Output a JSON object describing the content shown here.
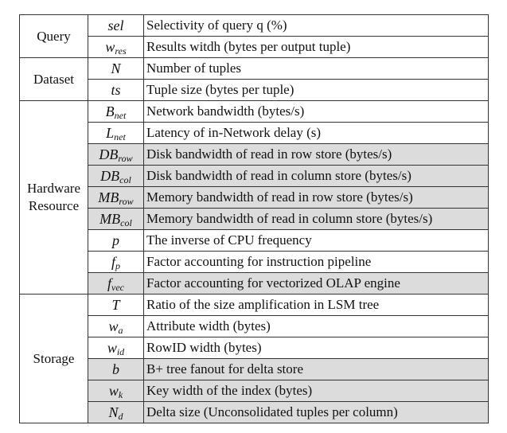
{
  "groups": {
    "query": "Query",
    "dataset": "Dataset",
    "hardware_1": "Hardware",
    "hardware_2": "Resource",
    "storage": "Storage"
  },
  "rows": [
    {
      "sym": "sel",
      "sub": "",
      "desc": "Selectivity of query q (%)",
      "shaded": false
    },
    {
      "sym": "w",
      "sub": "res",
      "desc": "Results witdh (bytes per output tuple)",
      "shaded": false
    },
    {
      "sym": "N",
      "sub": "",
      "desc": "Number of tuples",
      "shaded": false
    },
    {
      "sym": "ts",
      "sub": "",
      "desc": "Tuple size (bytes per tuple)",
      "shaded": false
    },
    {
      "sym": "B",
      "sub": "net",
      "desc": "Network bandwidth (bytes/s)",
      "shaded": false
    },
    {
      "sym": "L",
      "sub": "net",
      "desc": "Latency of in-Network delay (s)",
      "shaded": false
    },
    {
      "sym": "DB",
      "sub": "row",
      "desc": "Disk bandwidth of read in row store (bytes/s)",
      "shaded": true
    },
    {
      "sym": "DB",
      "sub": "col",
      "desc": "Disk bandwidth of read in column store (bytes/s)",
      "shaded": true
    },
    {
      "sym": "MB",
      "sub": "row",
      "desc": "Memory bandwidth of read in row store (bytes/s)",
      "shaded": true
    },
    {
      "sym": "MB",
      "sub": "col",
      "desc": "Memory bandwidth of read in column store (bytes/s)",
      "shaded": true
    },
    {
      "sym": "p",
      "sub": "",
      "desc": "The inverse of CPU frequency",
      "shaded": false
    },
    {
      "sym": "f",
      "sub": "p",
      "desc": "Factor accounting for instruction pipeline",
      "shaded": false
    },
    {
      "sym": "f",
      "sub": "vec",
      "desc": "Factor accounting for vectorized OLAP engine",
      "shaded": true
    },
    {
      "sym": "T",
      "sub": "",
      "desc": "Ratio of the size amplification in LSM tree",
      "shaded": false
    },
    {
      "sym": "w",
      "sub": "a",
      "desc": "Attribute width (bytes)",
      "shaded": false
    },
    {
      "sym": "w",
      "sub": "id",
      "desc": "RowID width (bytes)",
      "shaded": false
    },
    {
      "sym": "b",
      "sub": "",
      "desc": "B+ tree fanout for delta store",
      "shaded": true
    },
    {
      "sym": "w",
      "sub": "k",
      "desc": " Key width of the index (bytes)",
      "shaded": true
    },
    {
      "sym": "N",
      "sub": "d",
      "desc": "Delta size (Unconsolidated tuples per column)",
      "shaded": true
    }
  ]
}
